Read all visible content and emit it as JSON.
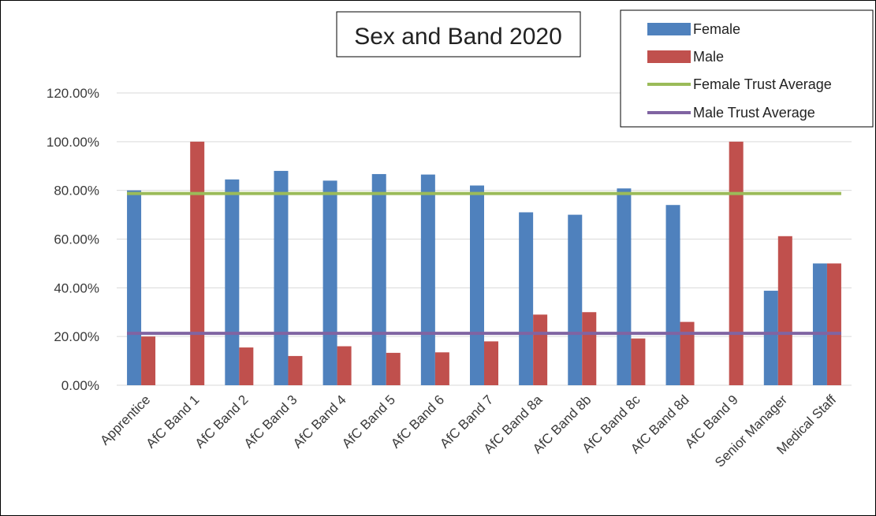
{
  "chart_data": {
    "type": "bar",
    "title": "Sex and Band 2020",
    "xlabel": "",
    "ylabel": "",
    "ylim": [
      0,
      1.2
    ],
    "y_ticks": [
      "0.00%",
      "20.00%",
      "40.00%",
      "60.00%",
      "80.00%",
      "100.00%",
      "120.00%"
    ],
    "grid": true,
    "legend_position": "top-right",
    "categories": [
      "Apprentice",
      "AfC Band 1",
      "AfC Band 2",
      "AfC Band 3",
      "AfC Band 4",
      "AfC Band 5",
      "AfC Band 6",
      "AfC Band 7",
      "AfC Band 8a",
      "AfC Band 8b",
      "AfC Band 8c",
      "AfC Band 8d",
      "AfC Band 9",
      "Senior Manager",
      "Medical Staff"
    ],
    "series": [
      {
        "name": "Female",
        "type": "bar",
        "color": "#4f81bd",
        "values": [
          0.8,
          0.0,
          0.845,
          0.88,
          0.84,
          0.867,
          0.865,
          0.82,
          0.71,
          0.7,
          0.808,
          0.74,
          0.0,
          0.388,
          0.5
        ]
      },
      {
        "name": "Male",
        "type": "bar",
        "color": "#c0504d",
        "values": [
          0.2,
          1.0,
          0.155,
          0.12,
          0.16,
          0.133,
          0.135,
          0.18,
          0.29,
          0.3,
          0.192,
          0.26,
          1.0,
          0.612,
          0.5
        ]
      },
      {
        "name": "Female Trust Average",
        "type": "line",
        "color": "#9bbb59",
        "value": 0.787
      },
      {
        "name": "Male Trust Average",
        "type": "line",
        "color": "#8064a2",
        "value": 0.213
      }
    ]
  }
}
